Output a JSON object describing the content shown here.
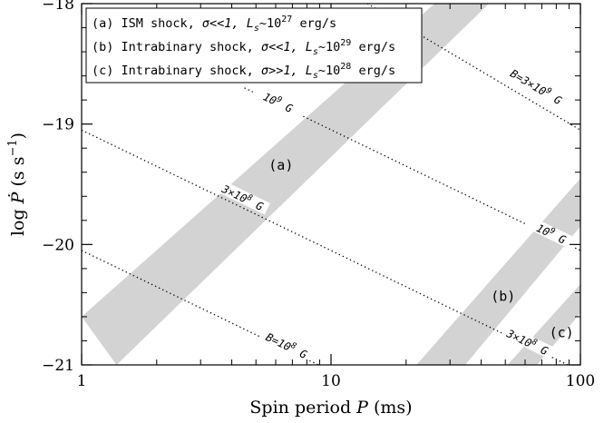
{
  "chart_data": {
    "type": "area",
    "xlabel_prefix": "Spin period ",
    "xlabel_var": "P",
    "xlabel_suffix": " (ms)",
    "ylabel_prefix": "log ",
    "ylabel_var": "Ṗ",
    "ylabel_suffix": " (s s",
    "ylabel_exp": "−1",
    "ylabel_close": ")",
    "x_scale": "log",
    "xlim": [
      1,
      100
    ],
    "ylim": [
      -21,
      -18
    ],
    "x_ticks": [
      {
        "value": 1,
        "label": "1"
      },
      {
        "value": 10,
        "label": "10"
      },
      {
        "value": 100,
        "label": "100"
      }
    ],
    "y_ticks": [
      {
        "value": -18,
        "label": "−18"
      },
      {
        "value": -19,
        "label": "−19"
      },
      {
        "value": -20,
        "label": "−20"
      },
      {
        "value": -21,
        "label": "−21"
      }
    ],
    "bands": [
      {
        "label": "(a)",
        "color": "#d3d3d3",
        "lower": [
          [
            1.38,
            -21
          ],
          [
            43,
            -18
          ]
        ],
        "upper": [
          [
            1,
            -20.6
          ],
          [
            26,
            -18
          ]
        ],
        "label_at": [
          6.3,
          -19.38
        ]
      },
      {
        "label": "(b)",
        "color": "#d3d3d3",
        "lower": [
          [
            34.5,
            -21
          ],
          [
            100,
            -19.85
          ]
        ],
        "upper": [
          [
            22,
            -21
          ],
          [
            100,
            -19.45
          ]
        ],
        "label_at": [
          49,
          -20.47
        ]
      },
      {
        "label": "(c)",
        "color": "#d3d3d3",
        "lower": [
          [
            67,
            -21
          ],
          [
            100,
            -20.57
          ]
        ],
        "upper": [
          [
            51,
            -21
          ],
          [
            100,
            -20.33
          ]
        ],
        "label_at": [
          84,
          -20.77
        ]
      }
    ],
    "field_lines": [
      {
        "x0": 1,
        "y0": -20.05,
        "x1": 8.9,
        "y1": -21,
        "label": "B=10",
        "exp": "8",
        "unit": " G",
        "label_at": [
          6.6,
          -20.85
        ]
      },
      {
        "x0": 1,
        "y0": -19.05,
        "x1": 89,
        "y1": -21,
        "label": "3×10",
        "exp": "8",
        "unit": " G",
        "label_at": [
          4.4,
          -19.62
        ],
        "label2_at": [
          61,
          -20.82
        ]
      },
      {
        "x0": 4.5,
        "y0": -18.7,
        "x1": 100,
        "y1": -20.05,
        "label": "10",
        "exp": "9",
        "unit": " G",
        "label_at": [
          6.1,
          -18.83
        ],
        "label2_at": [
          76,
          -19.92
        ]
      },
      {
        "x0": 14,
        "y0": -18,
        "x1": 100,
        "y1": -19.05,
        "label": "B=3×10",
        "exp": "9",
        "unit": " G",
        "label_at": [
          66,
          -18.7
        ]
      }
    ],
    "legend": {
      "placement": "top-left",
      "entries": [
        {
          "text": "(a) ISM shock, ",
          "sigma": "σ<<1, ",
          "lum": "L",
          "sub": "s",
          "tilde": "~10",
          "exp": "27",
          "unit": " erg/s"
        },
        {
          "text": "(b) Intrabinary shock, ",
          "sigma": "σ<<1, ",
          "lum": "L",
          "sub": "s",
          "tilde": "~10",
          "exp": "29",
          "unit": " erg/s"
        },
        {
          "text": "(c) Intrabinary shock, ",
          "sigma": "σ>>1, ",
          "lum": "L",
          "sub": "s",
          "tilde": "~10",
          "exp": "28",
          "unit": " erg/s"
        }
      ]
    }
  }
}
